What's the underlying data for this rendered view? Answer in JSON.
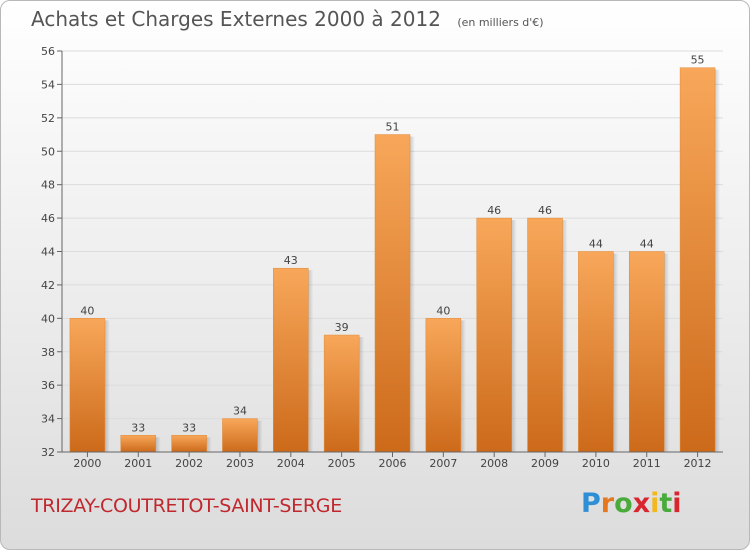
{
  "title": "Achats et Charges Externes 2000 à 2012",
  "unit": "(en milliers d'€)",
  "commune": "TRIZAY-COUTRETOT-SAINT-SERGE",
  "brand": {
    "letters": [
      "P",
      "r",
      "o",
      "x",
      "i",
      "t",
      "i"
    ],
    "colors": [
      "#2d8fd5",
      "#e5781e",
      "#4aab3c",
      "#d9262e",
      "#f2b81c",
      "#4aab3c",
      "#d9262e"
    ]
  },
  "colors": {
    "bar_top": "#f8a75a",
    "bar_bottom": "#cc6a1a",
    "grid": "#dcdcdc",
    "axis": "#666666",
    "text": "#444444"
  },
  "chart_data": {
    "type": "bar",
    "categories": [
      "2000",
      "2001",
      "2002",
      "2003",
      "2004",
      "2005",
      "2006",
      "2007",
      "2008",
      "2009",
      "2010",
      "2011",
      "2012"
    ],
    "values": [
      40,
      33,
      33,
      34,
      43,
      39,
      51,
      40,
      46,
      46,
      44,
      44,
      55
    ],
    "ylim": [
      32,
      56
    ],
    "yticks": [
      32,
      34,
      36,
      38,
      40,
      42,
      44,
      46,
      48,
      50,
      52,
      54,
      56
    ],
    "grid": true
  }
}
